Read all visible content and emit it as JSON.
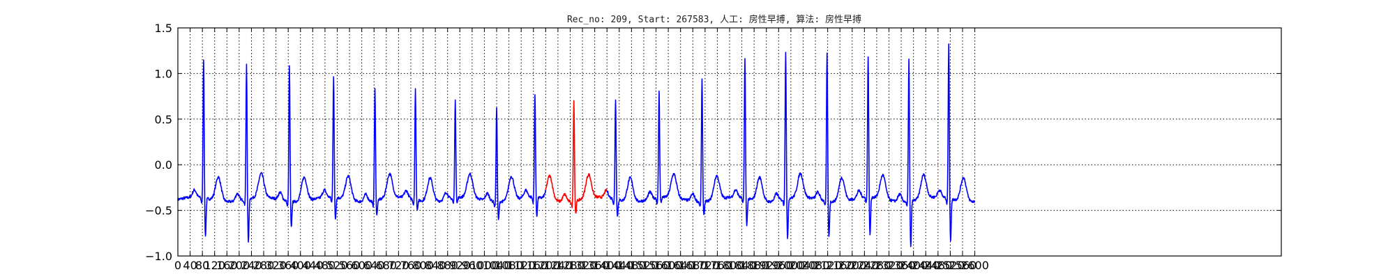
{
  "chart_data": {
    "type": "line",
    "title": "Rec_no: 209, Start: 267583, 人工: 房性早搏, 算法: 房性早搏",
    "xlabel": "",
    "ylabel": "",
    "xlim": [
      0,
      3600
    ],
    "ylim": [
      -1.0,
      1.5
    ],
    "grid": true,
    "x_tick_labels": [
      "0",
      "40",
      "80",
      "120",
      "160",
      "200",
      "240",
      "280",
      "320",
      "360",
      "400",
      "440",
      "480",
      "520",
      "560",
      "600",
      "640",
      "680",
      "720",
      "760",
      "800",
      "840",
      "880",
      "920",
      "960",
      "1000",
      "1040",
      "1080",
      "1120",
      "1160",
      "1200",
      "1240",
      "1280",
      "1320",
      "1360",
      "1400",
      "1440",
      "1480",
      "1520",
      "1560",
      "1600",
      "1640",
      "1680",
      "1720",
      "1760",
      "1800",
      "1840",
      "1880",
      "1920",
      "1960",
      "2000",
      "2040",
      "2080",
      "2120",
      "2160",
      "2200",
      "2240",
      "2280",
      "2320",
      "2360",
      "2400",
      "2440",
      "2480",
      "2520",
      "2560",
      "2600"
    ],
    "y_tick_labels": [
      "1.5",
      "1.0",
      "0.5",
      "0.0",
      "−0.5",
      "−1.0"
    ],
    "y_ticks": [
      1.5,
      1.0,
      0.5,
      0.0,
      -0.5,
      -1.0
    ],
    "colors": {
      "normal": "#0000ff",
      "highlight": "#ff0000"
    },
    "highlight_range": [
      1200,
      1400
    ],
    "sample_count": 2600,
    "baseline": -0.38,
    "r_peaks": [
      {
        "x": 84,
        "amp": 1.15,
        "s": -0.88
      },
      {
        "x": 224,
        "amp": 1.09,
        "s": -0.93
      },
      {
        "x": 364,
        "amp": 1.1,
        "s": -0.72
      },
      {
        "x": 508,
        "amp": 0.95,
        "s": -0.66
      },
      {
        "x": 643,
        "amp": 0.85,
        "s": -0.58
      },
      {
        "x": 775,
        "amp": 0.83,
        "s": -0.5
      },
      {
        "x": 905,
        "amp": 0.69,
        "s": -0.45
      },
      {
        "x": 1040,
        "amp": 0.66,
        "s": -0.62
      },
      {
        "x": 1165,
        "amp": 0.76,
        "s": -0.62
      },
      {
        "x": 1292,
        "amp": 0.72,
        "s": -0.55
      },
      {
        "x": 1428,
        "amp": 0.72,
        "s": -0.6
      },
      {
        "x": 1570,
        "amp": 0.78,
        "s": -0.45
      },
      {
        "x": 1710,
        "amp": 0.96,
        "s": -0.55
      },
      {
        "x": 1850,
        "amp": 1.17,
        "s": -0.73
      },
      {
        "x": 1983,
        "amp": 1.24,
        "s": -0.9
      },
      {
        "x": 2118,
        "amp": 1.24,
        "s": -0.85
      },
      {
        "x": 2252,
        "amp": 1.17,
        "s": -0.88
      },
      {
        "x": 2385,
        "amp": 1.18,
        "s": -0.98
      },
      {
        "x": 2515,
        "amp": 1.31,
        "s": -0.92
      }
    ]
  }
}
